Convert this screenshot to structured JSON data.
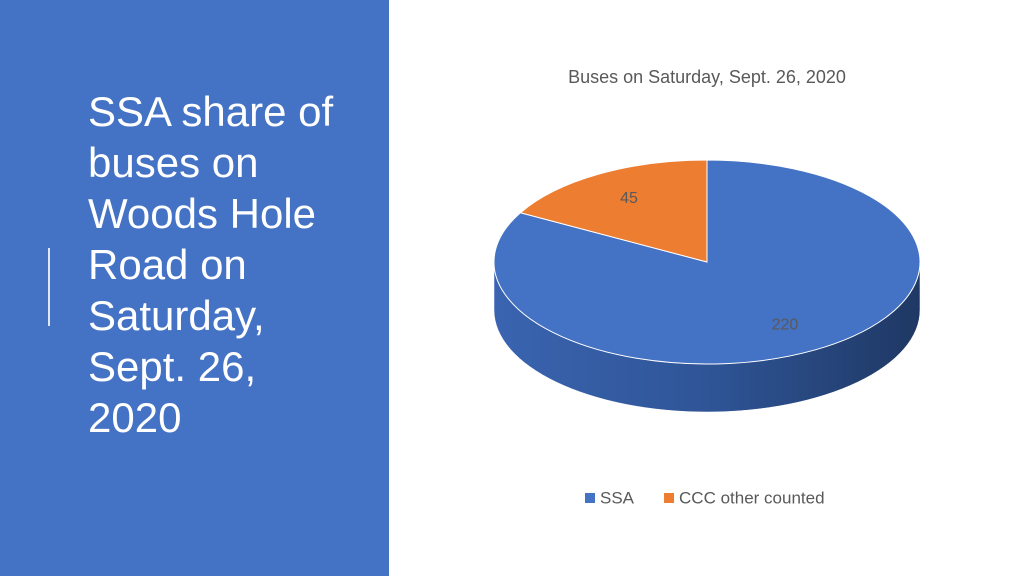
{
  "slide_title_lines": [
    "SSA share of",
    "buses on",
    "Woods Hole",
    "Road on",
    "Saturday,",
    "Sept. 26,",
    "2020"
  ],
  "chart_data": {
    "type": "pie",
    "title": "Buses on Saturday, Sept. 26, 2020",
    "categories": [
      "SSA",
      "CCC other counted"
    ],
    "values": [
      220,
      45
    ],
    "colors": [
      "#4472c4",
      "#ed7d31"
    ],
    "legend": "bottom"
  }
}
